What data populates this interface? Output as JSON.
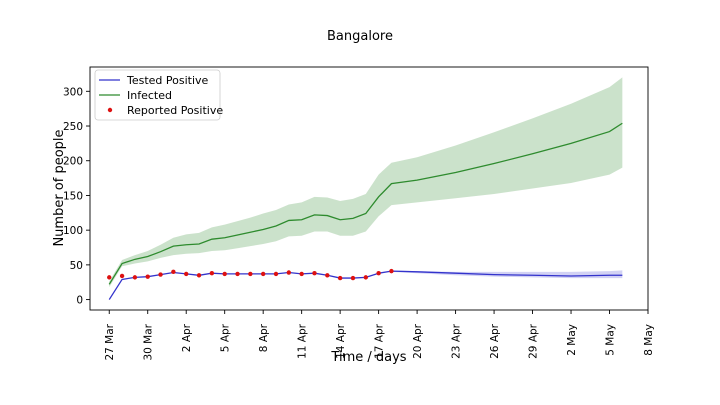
{
  "chart_data": {
    "type": "line",
    "title": "Bangalore",
    "xlabel": "Time / days",
    "ylabel": "Number of people",
    "x_ticks": [
      "27 Mar",
      "30 Mar",
      "2 Apr",
      "5 Apr",
      "8 Apr",
      "11 Apr",
      "14 Apr",
      "17 Apr",
      "20 Apr",
      "23 Apr",
      "26 Apr",
      "29 Apr",
      "2 May",
      "5 May",
      "8 May"
    ],
    "x_tick_values": [
      0,
      3,
      6,
      9,
      12,
      15,
      18,
      21,
      24,
      27,
      30,
      33,
      36,
      39,
      42
    ],
    "y_ticks": [
      0,
      50,
      100,
      150,
      200,
      250,
      300
    ],
    "xlim": [
      -1.5,
      42
    ],
    "ylim": [
      -15,
      335
    ],
    "grid": false,
    "legend_position": "top-left",
    "series": [
      {
        "name": "Tested Positive",
        "kind": "line",
        "color": "#3333cc",
        "x": [
          0,
          1,
          2,
          3,
          4,
          5,
          6,
          7,
          8,
          9,
          10,
          11,
          12,
          13,
          14,
          15,
          16,
          17,
          18,
          19,
          20,
          21,
          22,
          24,
          27,
          30,
          33,
          36,
          39,
          40
        ],
        "y": [
          0,
          29,
          32,
          33,
          36,
          39,
          37,
          35,
          38,
          37,
          37,
          37,
          37,
          37,
          39,
          37,
          38,
          35,
          31,
          31,
          32,
          38,
          41,
          40,
          38,
          36,
          35,
          34,
          35,
          35
        ],
        "band_x": [
          22,
          24,
          27,
          30,
          33,
          36,
          39,
          40
        ],
        "band_lower": [
          40,
          38,
          35,
          33,
          32,
          31,
          31,
          31
        ],
        "band_upper": [
          42,
          41,
          40,
          40,
          40,
          40,
          41,
          42
        ]
      },
      {
        "name": "Infected",
        "kind": "line",
        "color": "#2e8b2e",
        "x": [
          0,
          1,
          2,
          3,
          4,
          5,
          6,
          7,
          8,
          9,
          10,
          11,
          12,
          13,
          14,
          15,
          16,
          17,
          18,
          19,
          20,
          21,
          22,
          24,
          27,
          30,
          33,
          36,
          39,
          40
        ],
        "y": [
          22,
          52,
          58,
          62,
          69,
          77,
          79,
          80,
          87,
          89,
          93,
          97,
          101,
          106,
          114,
          115,
          122,
          121,
          115,
          117,
          124,
          148,
          167,
          172,
          183,
          196,
          210,
          225,
          242,
          254
        ],
        "band_lower": [
          18,
          48,
          52,
          55,
          60,
          64,
          66,
          67,
          70,
          71,
          74,
          77,
          80,
          84,
          91,
          92,
          98,
          98,
          92,
          92,
          98,
          120,
          136,
          140,
          146,
          152,
          160,
          168,
          180,
          190
        ],
        "band_upper": [
          26,
          57,
          64,
          70,
          79,
          89,
          94,
          96,
          104,
          108,
          113,
          118,
          124,
          129,
          137,
          140,
          148,
          147,
          142,
          145,
          152,
          180,
          197,
          205,
          222,
          241,
          261,
          282,
          306,
          320
        ]
      },
      {
        "name": "Reported Positive",
        "kind": "scatter",
        "color": "#dd1111",
        "x": [
          0,
          1,
          2,
          3,
          4,
          5,
          6,
          7,
          8,
          9,
          10,
          11,
          12,
          13,
          14,
          15,
          16,
          17,
          18,
          19,
          20,
          21,
          22
        ],
        "y": [
          32,
          34,
          32,
          33,
          36,
          40,
          37,
          35,
          38,
          37,
          37,
          37,
          37,
          37,
          39,
          37,
          38,
          35,
          31,
          31,
          32,
          38,
          41
        ]
      }
    ]
  }
}
